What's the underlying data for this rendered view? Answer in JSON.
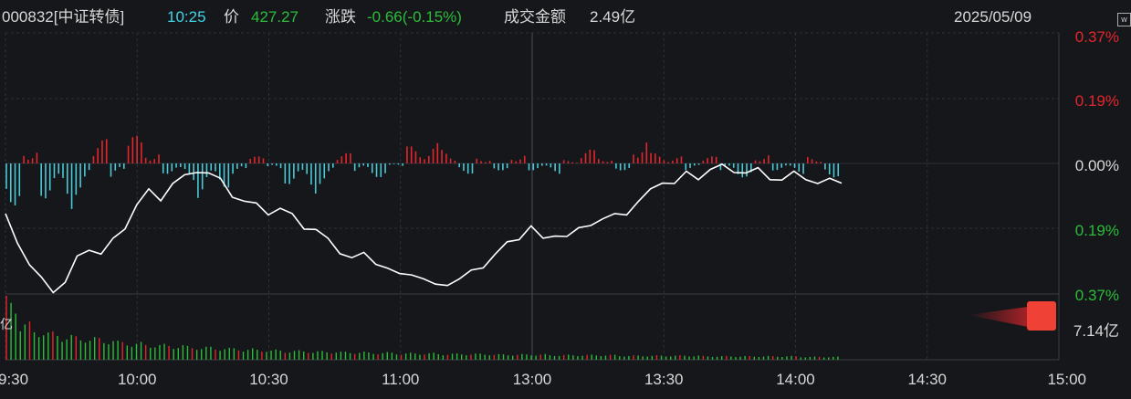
{
  "header": {
    "code_name": "000832[中证转债]",
    "time": "10:25",
    "price_label": "价",
    "price": "427.27",
    "change_label": "涨跌",
    "change": "-0.66(-0.15%)",
    "amount_label": "成交金额",
    "amount": "2.49亿",
    "date": "2025/05/09",
    "side_icon": "w"
  },
  "colors": {
    "up": "#e3262c",
    "down": "#2bbd3a",
    "cyan": "#4cc9d6",
    "line": "#ffffff",
    "grid": "#2e3038",
    "bg": "#16171b",
    "time_text": "#3fd6e8"
  },
  "chart_data": {
    "type": "line",
    "title": "",
    "x_ticks": [
      "9:30",
      "10:00",
      "10:30",
      "11:00",
      "13:00",
      "13:30",
      "14:00",
      "14:30",
      "15:00"
    ],
    "y_ticks_right": [
      "0.37%",
      "0.19%",
      "0.00%",
      "0.19%",
      "0.37%"
    ],
    "ylim_pct": [
      -0.37,
      0.37
    ],
    "volume_label": "7.14亿",
    "volume_side_label": "亿",
    "price_series_pct": [
      -0.15,
      -0.22,
      -0.29,
      -0.33,
      -0.36,
      -0.34,
      -0.27,
      -0.24,
      -0.26,
      -0.22,
      -0.18,
      -0.12,
      -0.08,
      -0.1,
      -0.06,
      -0.04,
      -0.02,
      -0.03,
      -0.05,
      -0.09,
      -0.11,
      -0.12,
      -0.14,
      -0.13,
      -0.15,
      -0.18,
      -0.19,
      -0.22,
      -0.25,
      -0.27,
      -0.26,
      -0.28,
      -0.3,
      -0.32,
      -0.31,
      -0.33,
      -0.35,
      -0.34,
      -0.33,
      -0.31,
      -0.29,
      -0.26,
      -0.23,
      -0.21,
      -0.18,
      -0.22,
      -0.2,
      -0.21,
      -0.19,
      -0.17,
      -0.16,
      -0.15,
      -0.14,
      -0.11,
      -0.08,
      -0.05,
      -0.06,
      -0.03,
      -0.04,
      -0.02,
      -0.01,
      -0.02,
      -0.03,
      -0.02,
      -0.04,
      -0.05,
      -0.03,
      -0.04,
      -0.06,
      -0.05,
      -0.05
    ],
    "diff_bars": [
      -0.12,
      0.05,
      -0.1,
      -0.14,
      -0.09,
      0.07,
      -0.05,
      0.08,
      0.04,
      -0.03,
      -0.05,
      -0.1,
      -0.07,
      -0.04,
      0.02,
      -0.02,
      -0.06,
      -0.09,
      -0.06,
      0.03,
      -0.03,
      -0.04,
      -0.01,
      0.05,
      0.06,
      0.04,
      -0.03,
      0.02,
      -0.02,
      0.03,
      -0.02,
      -0.03,
      0.01,
      0.04,
      0.02,
      -0.02,
      0.08,
      0.03,
      0.02,
      -0.02,
      0.02,
      -0.03,
      -0.04,
      0.03,
      -0.02,
      -0.03,
      0.02,
      -0.04
    ],
    "volume_bars": [
      1.0,
      0.6,
      0.5,
      0.45,
      0.4,
      0.38,
      0.36,
      0.34,
      0.3,
      0.28,
      0.26,
      0.25,
      0.24,
      0.22,
      0.21,
      0.2,
      0.19,
      0.18,
      0.17,
      0.16,
      0.15,
      0.15,
      0.14,
      0.14,
      0.13,
      0.13,
      0.12,
      0.12,
      0.11,
      0.11,
      0.11,
      0.1,
      0.1,
      0.1,
      0.1,
      0.09,
      0.09,
      0.09,
      0.09,
      0.08,
      0.08,
      0.08,
      0.08,
      0.08,
      0.07,
      0.07,
      0.07,
      0.07,
      0.07,
      0.07,
      0.06,
      0.06,
      0.06,
      0.06,
      0.06,
      0.06,
      0.06,
      0.05,
      0.05,
      0.05
    ]
  }
}
